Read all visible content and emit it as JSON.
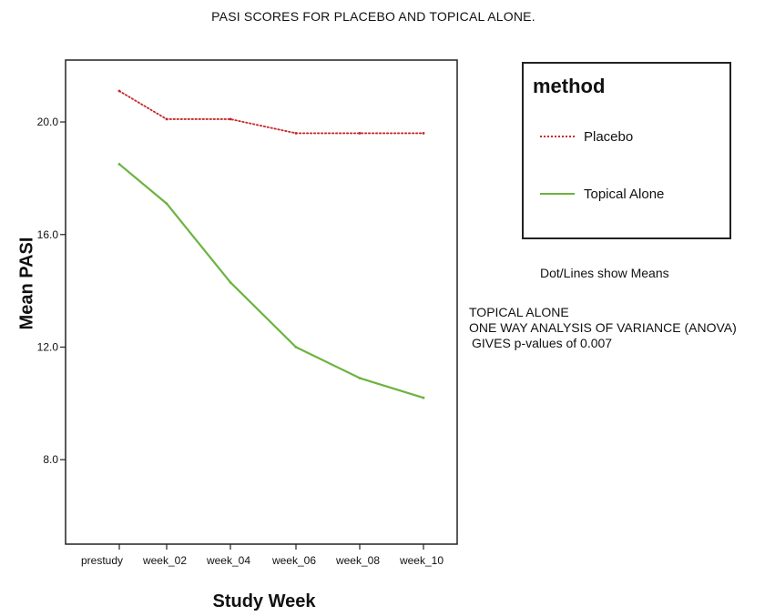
{
  "chart_data": {
    "type": "line",
    "title": "PASI SCORES FOR PLACEBO AND TOPICAL ALONE.",
    "xlabel": "Study Week",
    "ylabel": "Mean PASI",
    "categories": [
      "prestudy",
      "week_02",
      "week_04",
      "week_06",
      "week_08",
      "week_10"
    ],
    "y_ticks": [
      "8.0",
      "12.0",
      "16.0",
      "20.0"
    ],
    "ylim": [
      5.0,
      22.2
    ],
    "grid": false,
    "legend": {
      "title": "method",
      "placement": "right",
      "entries": [
        "Placebo",
        "Topical Alone"
      ]
    },
    "series": [
      {
        "name": "Placebo",
        "color": "#c62828",
        "style": "dotted",
        "points": [
          {
            "x": "prestudy",
            "y": 21.1
          },
          {
            "x": "week_02",
            "y": 20.1
          },
          {
            "x": "week_04",
            "y": 20.1
          },
          {
            "x": "week_06",
            "y": 19.6
          },
          {
            "x": "week_08",
            "y": 19.6
          },
          {
            "x": "week_10",
            "y": 19.6
          }
        ]
      },
      {
        "name": "Topical Alone",
        "color": "#6cb33f",
        "style": "solid",
        "points": [
          {
            "x": "prestudy",
            "y": 18.5
          },
          {
            "x": "week_02",
            "y": 17.1
          },
          {
            "x": "week_04",
            "y": 14.3
          },
          {
            "x": "week_06",
            "y": 12.0
          },
          {
            "x": "week_08",
            "y": 10.9
          },
          {
            "x": "week_10",
            "y": 10.2
          }
        ]
      }
    ],
    "annotations": [
      "Dot/Lines show Means",
      "TOPICAL ALONE",
      "ONE WAY ANALYSIS OF VARIANCE (ANOVA)",
      "GIVES p-values of 0.007"
    ]
  }
}
